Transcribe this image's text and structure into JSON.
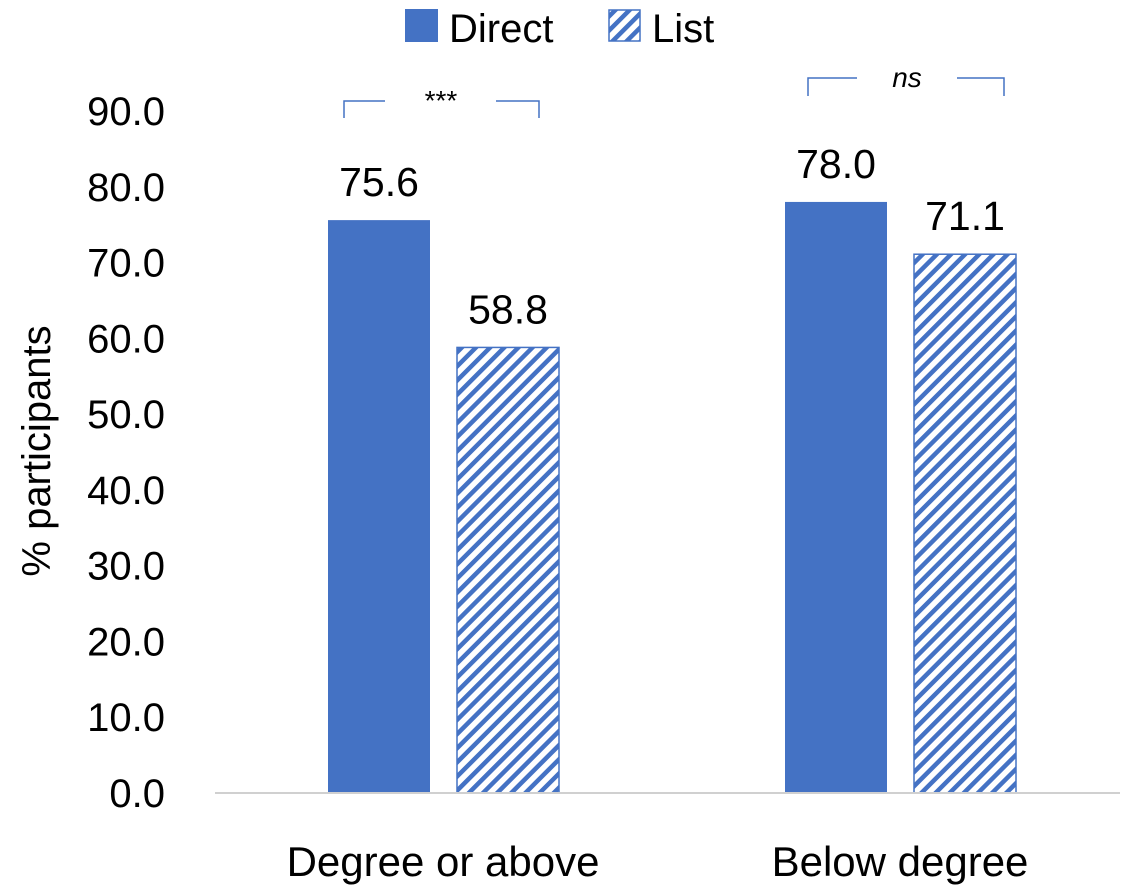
{
  "chart_data": {
    "type": "bar",
    "categories": [
      "Degree or above",
      "Below degree"
    ],
    "series": [
      {
        "name": "Direct",
        "values": [
          75.6,
          78.0
        ],
        "color": "#4472C4",
        "pattern": "solid"
      },
      {
        "name": "List",
        "values": [
          58.8,
          71.1
        ],
        "color": "#4472C4",
        "pattern": "diagonal-hatch"
      }
    ],
    "ylabel": "% participants",
    "xlabel": "",
    "ylim": [
      0,
      90
    ],
    "yticks": [
      "0.0",
      "10.0",
      "20.0",
      "30.0",
      "40.0",
      "50.0",
      "60.0",
      "70.0",
      "80.0",
      "90.0"
    ],
    "data_labels": [
      "75.6",
      "78.0",
      "58.8",
      "71.1"
    ],
    "significance": [
      "***",
      "ns"
    ],
    "legend_position": "top-center",
    "grid": false
  }
}
